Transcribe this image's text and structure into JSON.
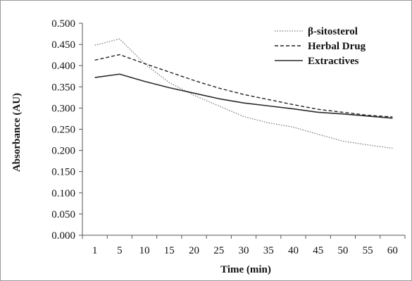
{
  "chart_data": {
    "type": "line",
    "title": "",
    "xlabel": "Time (min)",
    "ylabel": "Absorbance (AU)",
    "categories": [
      "1",
      "5",
      "10",
      "15",
      "20",
      "25",
      "30",
      "35",
      "40",
      "45",
      "50",
      "55",
      "60"
    ],
    "ylim": [
      0,
      0.5
    ],
    "yticks": [
      "0.000",
      "0.050",
      "0.100",
      "0.150",
      "0.200",
      "0.250",
      "0.300",
      "0.350",
      "0.400",
      "0.450",
      "0.500"
    ],
    "grid": false,
    "legend_position": "top-right",
    "series": [
      {
        "name": "β-sitosterol",
        "style": "dotted",
        "color": "#7a7a7a",
        "values": [
          0.448,
          0.463,
          0.405,
          0.36,
          0.33,
          0.305,
          0.28,
          0.265,
          0.255,
          0.238,
          0.222,
          0.213,
          0.205
        ]
      },
      {
        "name": "Herbal Drug",
        "style": "dashed",
        "color": "#222222",
        "values": [
          0.413,
          0.426,
          0.405,
          0.385,
          0.365,
          0.347,
          0.332,
          0.32,
          0.308,
          0.297,
          0.29,
          0.283,
          0.279
        ]
      },
      {
        "name": "Extractives",
        "style": "solid",
        "color": "#2a2a2a",
        "values": [
          0.372,
          0.38,
          0.363,
          0.348,
          0.335,
          0.322,
          0.312,
          0.305,
          0.298,
          0.29,
          0.286,
          0.281,
          0.276
        ]
      }
    ]
  }
}
